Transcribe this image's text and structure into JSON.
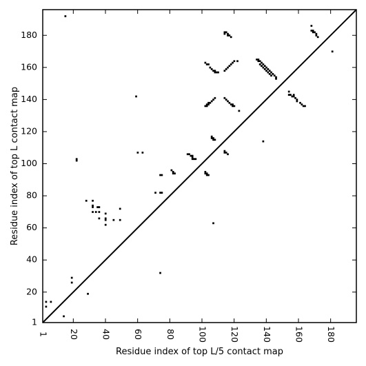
{
  "chart_data": {
    "type": "scatter",
    "title": "",
    "xlabel": "Residue index of top L/5 contact map",
    "ylabel": "Residue index of top L contact map",
    "xlim": [
      1,
      196
    ],
    "ylim": [
      1,
      196
    ],
    "xticks": [
      1,
      20,
      40,
      60,
      80,
      100,
      120,
      140,
      160,
      180
    ],
    "yticks": [
      1,
      20,
      40,
      60,
      80,
      100,
      120,
      140,
      160,
      180
    ],
    "grid": false,
    "diagonal": true,
    "mark_color": "#000000",
    "upper_points": [
      [
        15,
        192
      ],
      [
        3,
        14
      ],
      [
        3,
        11
      ],
      [
        6,
        14
      ],
      [
        14,
        5
      ],
      [
        19,
        29
      ],
      [
        19,
        26
      ],
      [
        22,
        103
      ],
      [
        22,
        102
      ],
      [
        29,
        19
      ],
      [
        28,
        77
      ],
      [
        32,
        77
      ],
      [
        32,
        74
      ],
      [
        32,
        73
      ],
      [
        32,
        70
      ],
      [
        34,
        70
      ],
      [
        35,
        73
      ],
      [
        36,
        73
      ],
      [
        36,
        70
      ],
      [
        36,
        66
      ],
      [
        40,
        69
      ],
      [
        40,
        66
      ],
      [
        40,
        65
      ],
      [
        40,
        62
      ],
      [
        45,
        65
      ],
      [
        49,
        72
      ],
      [
        49,
        65
      ],
      [
        59,
        142
      ],
      [
        60,
        107
      ],
      [
        63,
        107
      ],
      [
        71,
        82
      ],
      [
        74,
        82
      ],
      [
        75,
        82
      ],
      [
        74,
        93
      ],
      [
        75,
        93
      ],
      [
        74,
        32
      ],
      [
        81,
        96
      ],
      [
        82,
        95
      ],
      [
        82,
        94
      ],
      [
        83,
        94
      ],
      [
        91,
        106
      ],
      [
        92,
        106
      ],
      [
        93,
        105
      ],
      [
        94,
        105
      ],
      [
        94,
        104
      ],
      [
        94,
        103
      ],
      [
        95,
        103
      ],
      [
        96,
        103
      ],
      [
        102,
        95
      ],
      [
        102,
        94
      ],
      [
        103,
        94
      ],
      [
        103,
        93
      ],
      [
        104,
        93
      ],
      [
        107,
        63
      ],
      [
        102,
        163
      ],
      [
        103,
        162
      ],
      [
        104,
        162
      ],
      [
        105,
        160
      ],
      [
        106,
        159
      ],
      [
        107,
        158
      ],
      [
        108,
        158
      ],
      [
        108,
        157
      ],
      [
        109,
        157
      ],
      [
        110,
        157
      ],
      [
        102,
        136
      ],
      [
        103,
        136
      ],
      [
        103,
        137
      ],
      [
        104,
        137
      ],
      [
        104,
        138
      ],
      [
        105,
        138
      ],
      [
        106,
        139
      ],
      [
        107,
        140
      ],
      [
        108,
        141
      ],
      [
        106,
        117
      ],
      [
        106,
        116
      ],
      [
        107,
        116
      ],
      [
        107,
        115
      ],
      [
        108,
        115
      ],
      [
        114,
        108
      ],
      [
        114,
        107
      ],
      [
        115,
        107
      ],
      [
        116,
        106
      ],
      [
        114,
        182
      ],
      [
        114,
        181
      ],
      [
        115,
        182
      ],
      [
        116,
        181
      ],
      [
        116,
        180
      ],
      [
        117,
        180
      ],
      [
        118,
        179
      ],
      [
        114,
        158
      ],
      [
        115,
        159
      ],
      [
        116,
        160
      ],
      [
        117,
        161
      ],
      [
        118,
        162
      ],
      [
        119,
        163
      ],
      [
        120,
        164
      ],
      [
        122,
        164
      ],
      [
        114,
        141
      ],
      [
        115,
        140
      ],
      [
        116,
        139
      ],
      [
        117,
        138
      ],
      [
        118,
        137
      ],
      [
        119,
        137
      ],
      [
        119,
        136
      ],
      [
        120,
        136
      ],
      [
        123,
        133
      ],
      [
        134,
        165
      ],
      [
        135,
        165
      ],
      [
        135,
        164
      ],
      [
        136,
        164
      ],
      [
        137,
        163
      ],
      [
        138,
        162
      ],
      [
        139,
        161
      ],
      [
        140,
        160
      ],
      [
        141,
        159
      ],
      [
        142,
        158
      ],
      [
        143,
        157
      ],
      [
        144,
        156
      ],
      [
        145,
        155
      ],
      [
        146,
        154
      ],
      [
        146,
        153
      ],
      [
        136,
        162
      ],
      [
        137,
        161
      ],
      [
        138,
        160
      ],
      [
        139,
        159
      ],
      [
        140,
        158
      ],
      [
        141,
        157
      ],
      [
        142,
        156
      ],
      [
        143,
        155
      ],
      [
        138,
        114
      ],
      [
        154,
        145
      ],
      [
        154,
        143
      ],
      [
        155,
        143
      ],
      [
        156,
        142
      ],
      [
        157,
        142
      ],
      [
        157,
        143
      ],
      [
        158,
        141
      ],
      [
        159,
        140
      ],
      [
        159,
        139
      ],
      [
        161,
        138
      ],
      [
        162,
        137
      ],
      [
        163,
        136
      ],
      [
        164,
        136
      ],
      [
        168,
        186
      ],
      [
        168,
        183
      ],
      [
        169,
        182
      ],
      [
        169,
        183
      ],
      [
        170,
        182
      ],
      [
        171,
        181
      ],
      [
        171,
        180
      ],
      [
        172,
        179
      ],
      [
        181,
        170
      ]
    ]
  }
}
